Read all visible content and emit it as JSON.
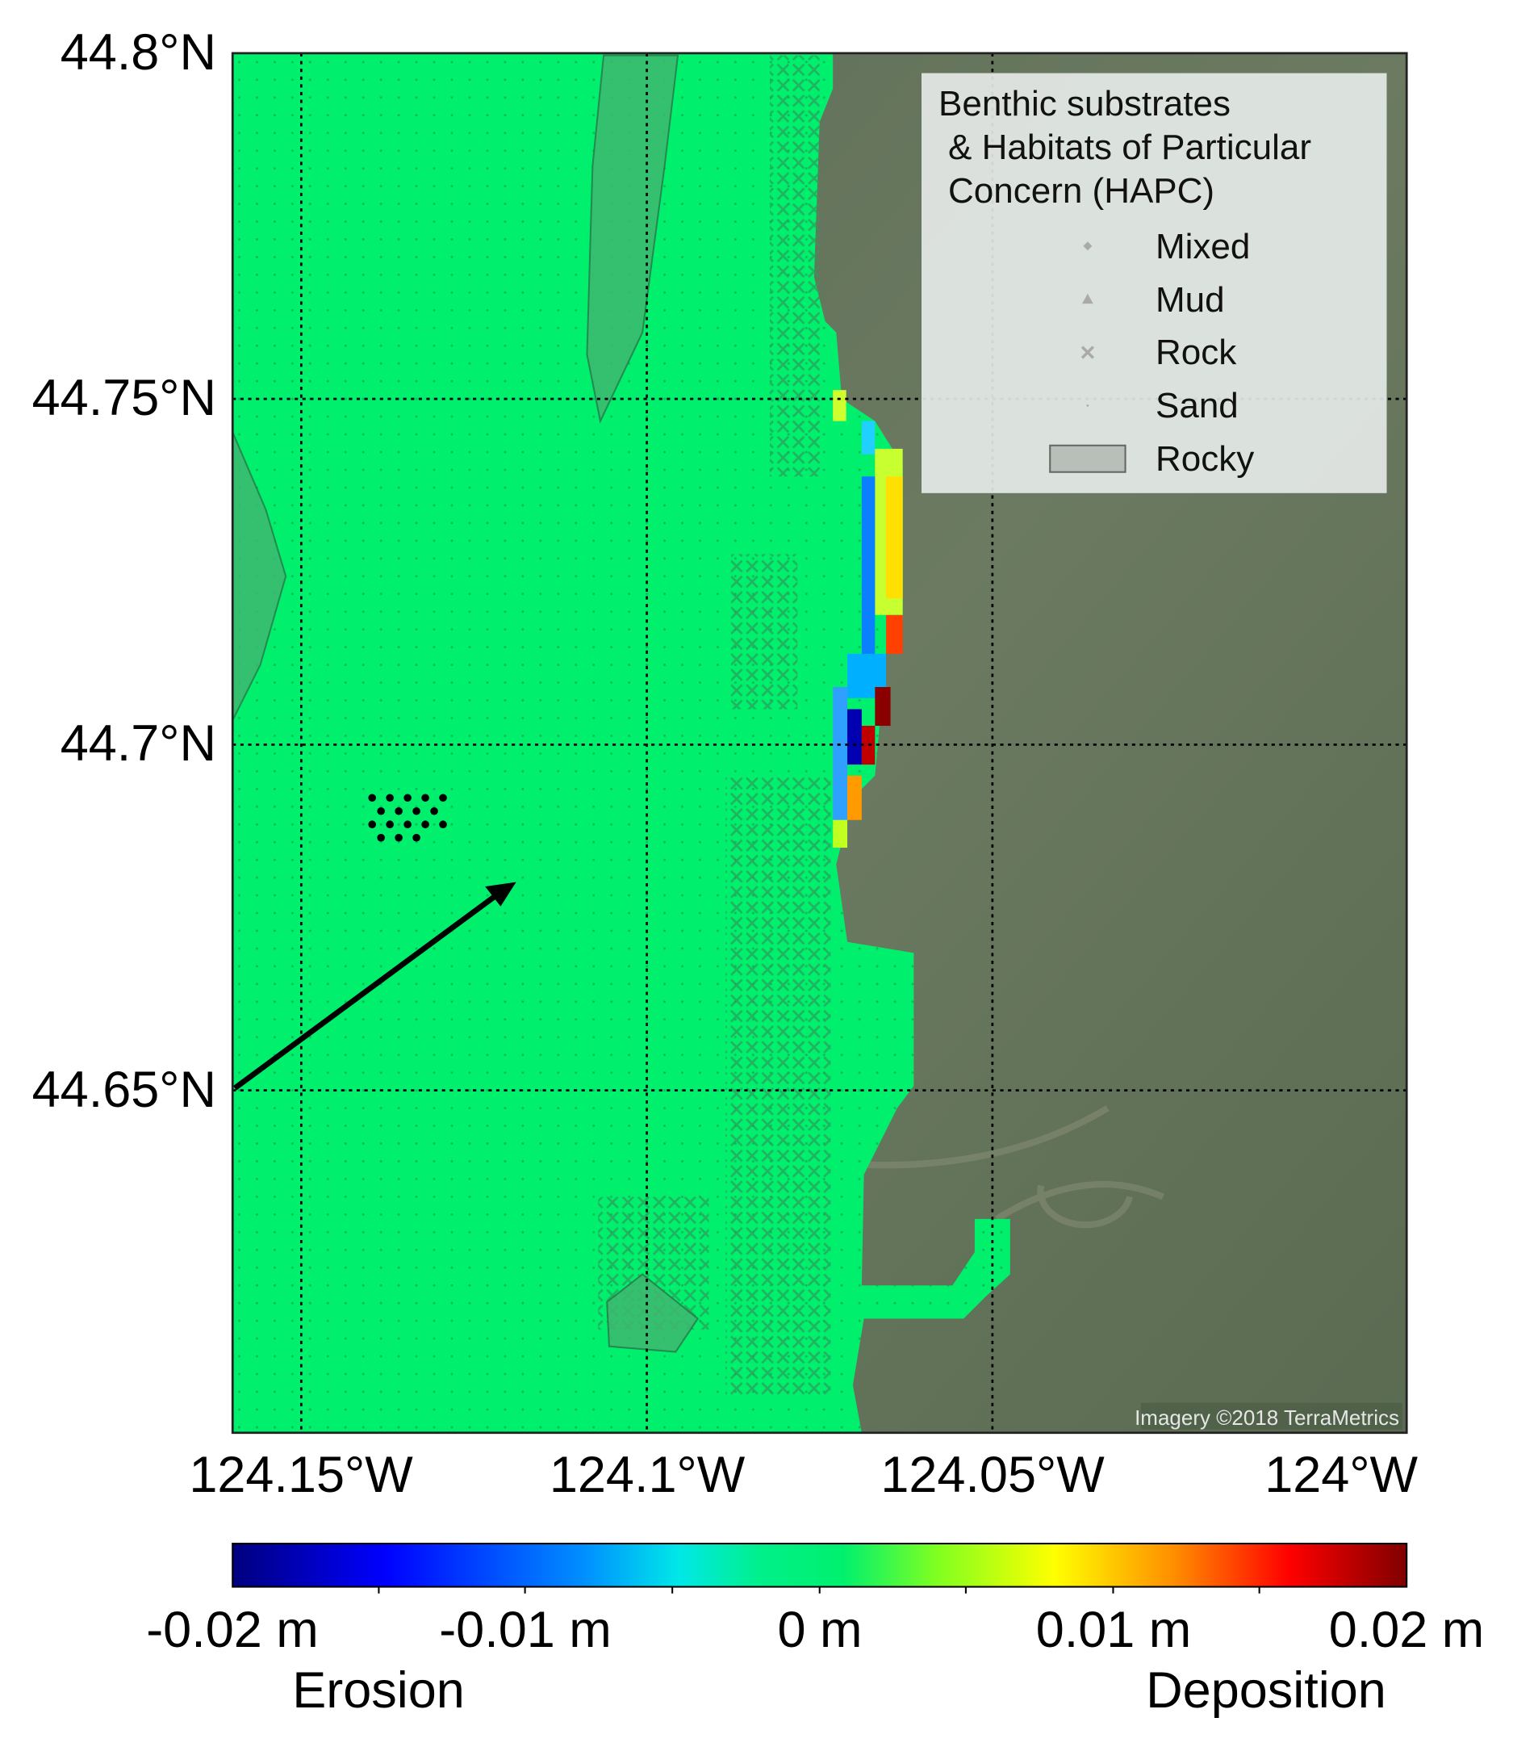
{
  "map": {
    "latitude_labels": [
      "44.8°N",
      "44.75°N",
      "44.7°N",
      "44.65°N"
    ],
    "longitude_labels": [
      "124.15°W",
      "124.1°W",
      "124.05°W",
      "124°W"
    ],
    "legend": {
      "title_lines": [
        "Benthic substrates",
        "& Habitats of Particular",
        "Concern (HAPC)"
      ],
      "items": [
        "Mixed",
        "Mud",
        "Rock",
        "Sand",
        "Rocky"
      ]
    },
    "credit": "Imagery ©2018 TerraMetrics",
    "colorbar": {
      "tick_labels": [
        "-0.02 m",
        "-0.01 m",
        "0 m",
        "0.01 m",
        "0.02 m"
      ],
      "left_label": "Erosion",
      "right_label": "Deposition"
    }
  }
}
